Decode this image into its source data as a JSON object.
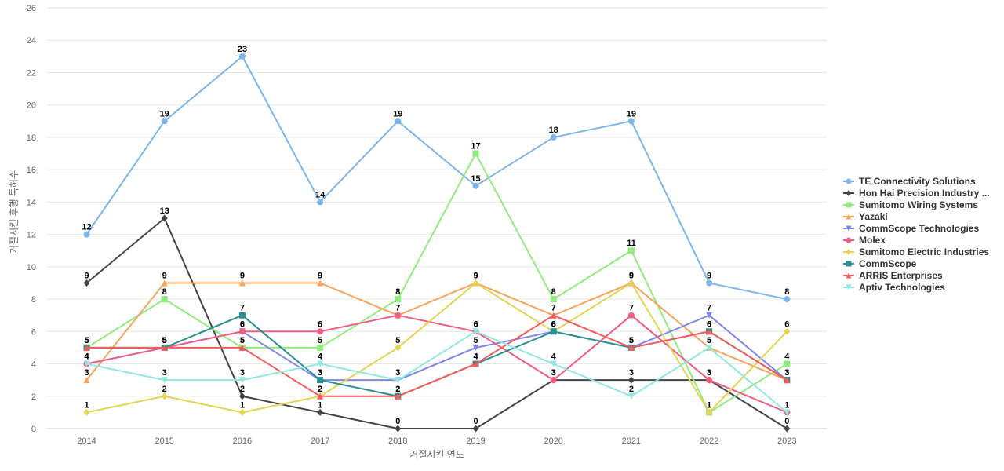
{
  "chart_data": {
    "type": "line",
    "title": "",
    "xlabel": "거절시킨 연도",
    "ylabel": "거절시킨 후행 특허수",
    "categories": [
      "2014",
      "2015",
      "2016",
      "2017",
      "2018",
      "2019",
      "2020",
      "2021",
      "2022",
      "2023"
    ],
    "ylim": [
      0,
      26
    ],
    "yticks": [
      0,
      2,
      4,
      6,
      8,
      10,
      12,
      14,
      16,
      18,
      20,
      22,
      24,
      26
    ],
    "grid": true,
    "legend_position": "right",
    "data_labels": true,
    "series": [
      {
        "name": "TE Connectivity Solutions",
        "color": "#7cb5ec",
        "marker": "circle",
        "values": [
          12,
          19,
          23,
          14,
          19,
          15,
          18,
          19,
          9,
          8
        ]
      },
      {
        "name": "Hon Hai Precision Industry ...",
        "color": "#434348",
        "marker": "diamond",
        "values": [
          9,
          13,
          2,
          1,
          0,
          0,
          3,
          3,
          3,
          0
        ]
      },
      {
        "name": "Sumitomo Wiring Systems",
        "color": "#90ed7d",
        "marker": "square",
        "values": [
          5,
          8,
          5,
          5,
          8,
          17,
          8,
          11,
          1,
          4
        ]
      },
      {
        "name": "Yazaki",
        "color": "#f7a35c",
        "marker": "triangle",
        "values": [
          3,
          9,
          9,
          9,
          7,
          9,
          7,
          9,
          5,
          3
        ]
      },
      {
        "name": "CommScope Technologies",
        "color": "#8085e9",
        "marker": "triangle-down",
        "values": [
          4,
          5,
          6,
          3,
          3,
          5,
          6,
          5,
          7,
          3
        ]
      },
      {
        "name": "Molex",
        "color": "#f15c80",
        "marker": "circle",
        "values": [
          4,
          5,
          6,
          6,
          7,
          6,
          3,
          7,
          3,
          1
        ]
      },
      {
        "name": "Sumitomo Electric Industries",
        "color": "#e4d354",
        "marker": "diamond",
        "values": [
          1,
          2,
          1,
          2,
          5,
          9,
          6,
          9,
          1,
          6
        ]
      },
      {
        "name": "CommScope",
        "color": "#2b908f",
        "marker": "square",
        "values": [
          5,
          5,
          7,
          3,
          2,
          4,
          6,
          5,
          6,
          3
        ]
      },
      {
        "name": "ARRIS Enterprises",
        "color": "#f45b5b",
        "marker": "triangle",
        "values": [
          5,
          5,
          5,
          2,
          2,
          4,
          7,
          5,
          6,
          3
        ]
      },
      {
        "name": "Aptiv Technologies",
        "color": "#91e8e1",
        "marker": "triangle-down",
        "values": [
          4,
          3,
          3,
          4,
          3,
          6,
          4,
          2,
          5,
          1
        ]
      }
    ]
  }
}
